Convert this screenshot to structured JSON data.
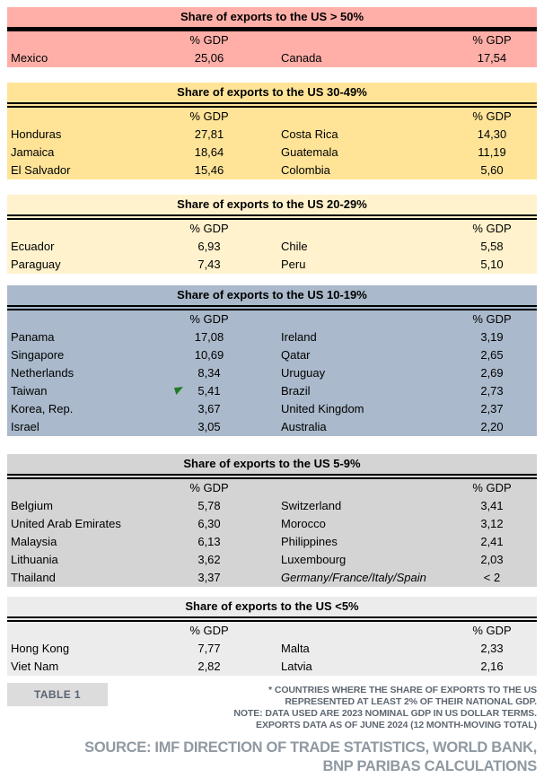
{
  "labels": {
    "gdp": "% GDP"
  },
  "colors": {
    "band_gt50": "#FFAFA8",
    "band_30_49": "#FFE498",
    "band_20_29": "#FFF2CC",
    "band_10_19": "#AAB9CB",
    "band_5_9": "#D4D4D4",
    "band_lt5": "#ECECEC",
    "flag_green": "#1F7A22",
    "note_text": "#5E6771",
    "source_text": "#8F99A2",
    "badge_bg": "#DCDCDC"
  },
  "sections": [
    {
      "title": "Share of exports to the US > 50%",
      "rows": [
        {
          "c1": "Mexico",
          "v1": "25,06",
          "c2": "Canada",
          "v2": "17,54"
        }
      ]
    },
    {
      "title": "Share of exports to the US 30-49%",
      "rows": [
        {
          "c1": "Honduras",
          "v1": "27,81",
          "c2": "Costa Rica",
          "v2": "14,30"
        },
        {
          "c1": "Jamaica",
          "v1": "18,64",
          "c2": "Guatemala",
          "v2": "11,19"
        },
        {
          "c1": "El Salvador",
          "v1": "15,46",
          "c2": "Colombia",
          "v2": "5,60"
        }
      ]
    },
    {
      "title": "Share of exports to the US 20-29%",
      "rows": [
        {
          "c1": "Ecuador",
          "v1": "6,93",
          "c2": "Chile",
          "v2": "5,58"
        },
        {
          "c1": "Paraguay",
          "v1": "7,43",
          "c2": "Peru",
          "v2": "5,10"
        }
      ]
    },
    {
      "title": "Share of exports to the US 10-19%",
      "rows": [
        {
          "c1": "Panama",
          "v1": "17,08",
          "c2": "Ireland",
          "v2": "3,19"
        },
        {
          "c1": "Singapore",
          "v1": "10,69",
          "c2": "Qatar",
          "v2": "2,65"
        },
        {
          "c1": "Netherlands",
          "v1": "8,34",
          "c2": "Uruguay",
          "v2": "2,69"
        },
        {
          "c1": "Taiwan",
          "v1": "5,41",
          "c2": "Brazil",
          "v2": "2,73",
          "flag": "excel-green-flag"
        },
        {
          "c1": "Korea, Rep.",
          "v1": "3,67",
          "c2": "United Kingdom",
          "v2": "2,37"
        },
        {
          "c1": "Israel",
          "v1": "3,05",
          "c2": "Australia",
          "v2": "2,20"
        }
      ]
    },
    {
      "title": "Share of exports to the US 5-9%",
      "rows": [
        {
          "c1": "Belgium",
          "v1": "5,78",
          "c2": "Switzerland",
          "v2": "3,41"
        },
        {
          "c1": "United Arab Emirates",
          "v1": "6,30",
          "c2": "Morocco",
          "v2": "3,12"
        },
        {
          "c1": "Malaysia",
          "v1": "6,13",
          "c2": "Philippines",
          "v2": "2,41"
        },
        {
          "c1": "Lithuania",
          "v1": "3,62",
          "c2": "Luxembourg",
          "v2": "2,03"
        },
        {
          "c1": "Thailand",
          "v1": "3,37",
          "c2": "Germany/France/Italy/Spain",
          "v2": "< 2"
        }
      ]
    },
    {
      "title": "Share of exports to the US <5%",
      "rows": [
        {
          "c1": "Hong Kong",
          "v1": "7,77",
          "c2": "Malta",
          "v2": "2,33"
        },
        {
          "c1": "Viet Nam",
          "v1": "2,82",
          "c2": "Latvia",
          "v2": "2,16"
        }
      ]
    }
  ],
  "footer": {
    "table_label": "TABLE 1",
    "note_lines": [
      "* COUNTRIES WHERE THE SHARE OF EXPORTS TO THE US",
      "REPRESENTED AT LEAST 2% OF THEIR NATIONAL GDP.",
      "NOTE: DATA USED ARE 2023 NOMINAL GDP IN US DOLLAR TERMS.",
      "EXPORTS DATA AS OF JUNE 2024 (12 MONTH-MOVING TOTAL)"
    ],
    "source_lines": [
      "SOURCE: IMF DIRECTION OF TRADE STATISTICS, WORLD BANK,",
      "BNP PARIBAS CALCULATIONS"
    ]
  },
  "chart_data": {
    "type": "table",
    "title": "Share of exports to the US (% GDP)",
    "value_unit": "% GDP",
    "groups": [
      {
        "range": "> 50%",
        "entries": [
          {
            "country": "Mexico",
            "pct_gdp": 25.06
          },
          {
            "country": "Canada",
            "pct_gdp": 17.54
          }
        ]
      },
      {
        "range": "30-49%",
        "entries": [
          {
            "country": "Honduras",
            "pct_gdp": 27.81
          },
          {
            "country": "Costa Rica",
            "pct_gdp": 14.3
          },
          {
            "country": "Jamaica",
            "pct_gdp": 18.64
          },
          {
            "country": "Guatemala",
            "pct_gdp": 11.19
          },
          {
            "country": "El Salvador",
            "pct_gdp": 15.46
          },
          {
            "country": "Colombia",
            "pct_gdp": 5.6
          }
        ]
      },
      {
        "range": "20-29%",
        "entries": [
          {
            "country": "Ecuador",
            "pct_gdp": 6.93
          },
          {
            "country": "Chile",
            "pct_gdp": 5.58
          },
          {
            "country": "Paraguay",
            "pct_gdp": 7.43
          },
          {
            "country": "Peru",
            "pct_gdp": 5.1
          }
        ]
      },
      {
        "range": "10-19%",
        "entries": [
          {
            "country": "Panama",
            "pct_gdp": 17.08
          },
          {
            "country": "Ireland",
            "pct_gdp": 3.19
          },
          {
            "country": "Singapore",
            "pct_gdp": 10.69
          },
          {
            "country": "Qatar",
            "pct_gdp": 2.65
          },
          {
            "country": "Netherlands",
            "pct_gdp": 8.34
          },
          {
            "country": "Uruguay",
            "pct_gdp": 2.69
          },
          {
            "country": "Taiwan",
            "pct_gdp": 5.41
          },
          {
            "country": "Brazil",
            "pct_gdp": 2.73
          },
          {
            "country": "Korea, Rep.",
            "pct_gdp": 3.67
          },
          {
            "country": "United Kingdom",
            "pct_gdp": 2.37
          },
          {
            "country": "Israel",
            "pct_gdp": 3.05
          },
          {
            "country": "Australia",
            "pct_gdp": 2.2
          }
        ]
      },
      {
        "range": "5-9%",
        "entries": [
          {
            "country": "Belgium",
            "pct_gdp": 5.78
          },
          {
            "country": "Switzerland",
            "pct_gdp": 3.41
          },
          {
            "country": "United Arab Emirates",
            "pct_gdp": 6.3
          },
          {
            "country": "Morocco",
            "pct_gdp": 3.12
          },
          {
            "country": "Malaysia",
            "pct_gdp": 6.13
          },
          {
            "country": "Philippines",
            "pct_gdp": 2.41
          },
          {
            "country": "Lithuania",
            "pct_gdp": 3.62
          },
          {
            "country": "Luxembourg",
            "pct_gdp": 2.03
          },
          {
            "country": "Thailand",
            "pct_gdp": 3.37
          },
          {
            "country": "Germany/France/Italy/Spain",
            "pct_gdp": "< 2"
          }
        ]
      },
      {
        "range": "<5%",
        "entries": [
          {
            "country": "Hong Kong",
            "pct_gdp": 7.77
          },
          {
            "country": "Malta",
            "pct_gdp": 2.33
          },
          {
            "country": "Viet Nam",
            "pct_gdp": 2.82
          },
          {
            "country": "Latvia",
            "pct_gdp": 2.16
          }
        ]
      }
    ]
  }
}
